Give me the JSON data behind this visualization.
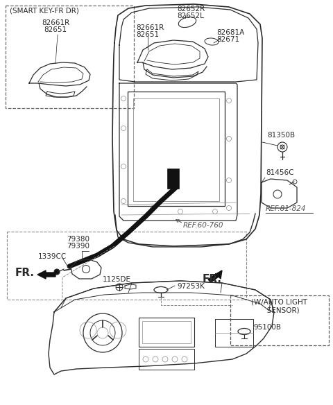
{
  "bg_color": "#ffffff",
  "lc": "#2a2a2a",
  "tc": "#2a2a2a",
  "gray": "#888888",
  "dark": "#111111",
  "labels": {
    "smart_key_title": "(SMART KEY-FR DR)",
    "lbl_82661R_a": "82661R",
    "lbl_82651_a": "82651",
    "lbl_82661R_b": "82661R",
    "lbl_82651_b": "82651",
    "lbl_82652R": "82652R",
    "lbl_82652L": "82652L",
    "lbl_82681A": "82681A",
    "lbl_82671": "82671",
    "lbl_81350B": "81350B",
    "lbl_81456C": "81456C",
    "lbl_ref81": "REF.81-824",
    "lbl_ref60": "REF.60-760",
    "lbl_79380": "79380",
    "lbl_79390": "79390",
    "lbl_1339CC": "1339CC",
    "lbl_1125DE": "1125DE",
    "lbl_97253K": "97253K",
    "lbl_95100B": "95100B",
    "lbl_w_auto": "(W/AUTO LIGHT\n   SENSOR)",
    "lbl_fr1": "FR.",
    "lbl_fr2": "FR."
  }
}
